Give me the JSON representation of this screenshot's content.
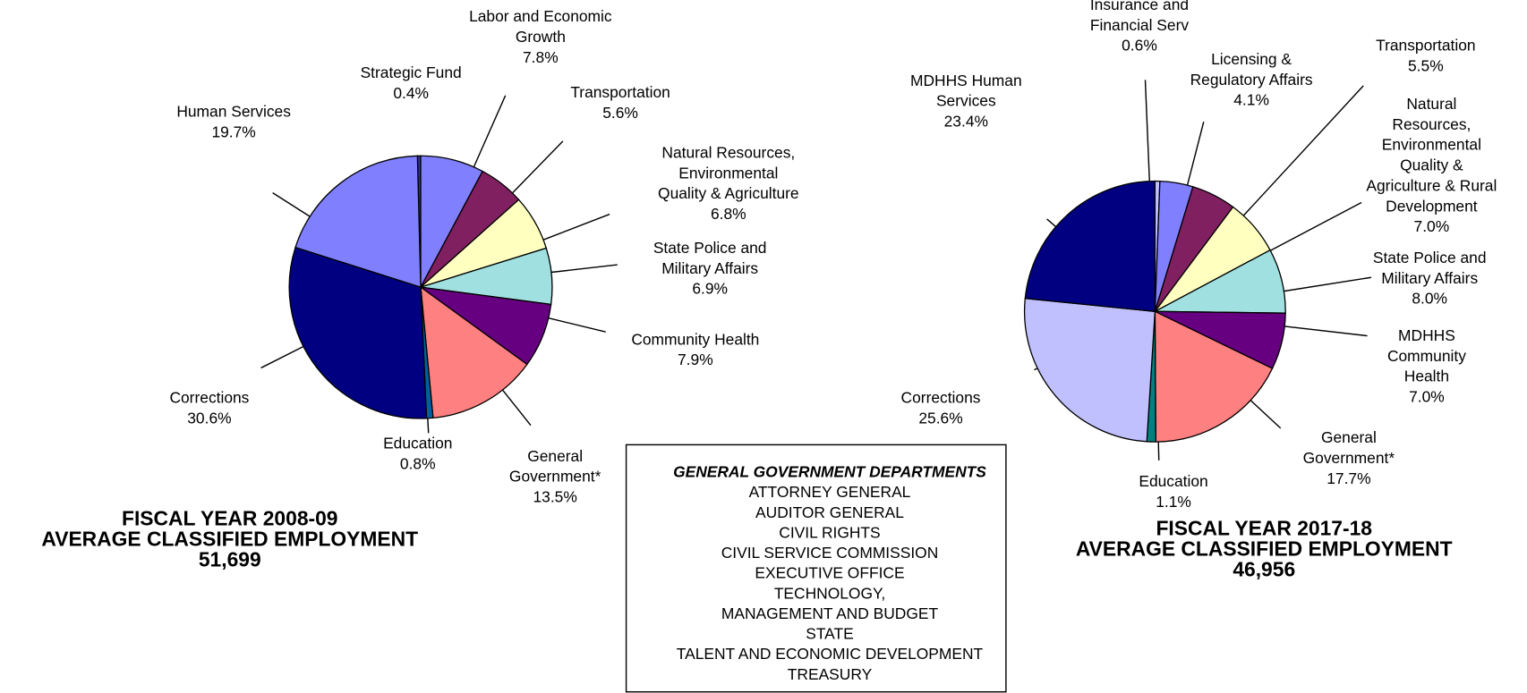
{
  "chart_data": [
    {
      "type": "pie",
      "title": "FISCAL YEAR 2008-09",
      "subtitle": "AVERAGE CLASSIFIED EMPLOYMENT",
      "annotation": "51,699",
      "categories": [
        "Strategic Fund",
        "Labor and Economic\nGrowth",
        "Transportation",
        "Natural Resources,\nEnvironmental\nQuality & Agriculture",
        "State Police and\nMilitary Affairs",
        "Community Health",
        "General\nGovernment*",
        "Education",
        "Corrections",
        "Human Services"
      ],
      "values": [
        0.4,
        7.8,
        5.6,
        6.8,
        6.9,
        7.9,
        13.5,
        0.8,
        30.6,
        19.7
      ],
      "value_labels": [
        "0.4%",
        "7.8%",
        "5.6%",
        "6.8%",
        "6.9%",
        "7.9%",
        "13.5%",
        "0.8%",
        "30.6%",
        "19.7%"
      ],
      "colors": [
        "#333399",
        "#8080ff",
        "#802060",
        "#ffffc0",
        "#a0e0e0",
        "#660080",
        "#ff8080",
        "#0060a0",
        "#000080",
        "#8080ff"
      ]
    },
    {
      "type": "pie",
      "title": "FISCAL YEAR 2017-18",
      "subtitle": "AVERAGE CLASSIFIED EMPLOYMENT",
      "annotation": "46,956",
      "categories": [
        "Insurance and\nFinancial Serv",
        "Licensing &\nRegulatory Affairs",
        "Transportation",
        "Natural\nResources,\nEnvironmental\nQuality  &\nAgriculture & Rural\nDevelopment",
        "State Police and\nMilitary Affairs",
        "MDHHS\nCommunity\nHealth",
        "General\nGovernment*",
        "Education",
        "Corrections",
        "MDHHS Human\nServices"
      ],
      "values": [
        0.6,
        4.1,
        5.5,
        7.0,
        8.0,
        7.0,
        17.7,
        1.1,
        25.6,
        23.4
      ],
      "value_labels": [
        "0.6%",
        "4.1%",
        "5.5%",
        "7.0%",
        "8.0%",
        "7.0%",
        "17.7%",
        "1.1%",
        "25.6%",
        "23.4%"
      ],
      "colors": [
        "#c0c0ff",
        "#8080ff",
        "#802060",
        "#ffffc0",
        "#a0e0e0",
        "#660080",
        "#ff8080",
        "#008080",
        "#c0c0ff",
        "#000080"
      ]
    }
  ],
  "box": {
    "title": "GENERAL GOVERNMENT DEPARTMENTS",
    "items": [
      "ATTORNEY GENERAL",
      "AUDITOR GENERAL",
      "CIVIL RIGHTS",
      "CIVIL SERVICE COMMISSION",
      "EXECUTIVE OFFICE",
      "TECHNOLOGY,\nMANAGEMENT AND BUDGET",
      "STATE",
      "TALENT AND ECONOMIC DEVELOPMENT",
      "TREASURY"
    ]
  }
}
